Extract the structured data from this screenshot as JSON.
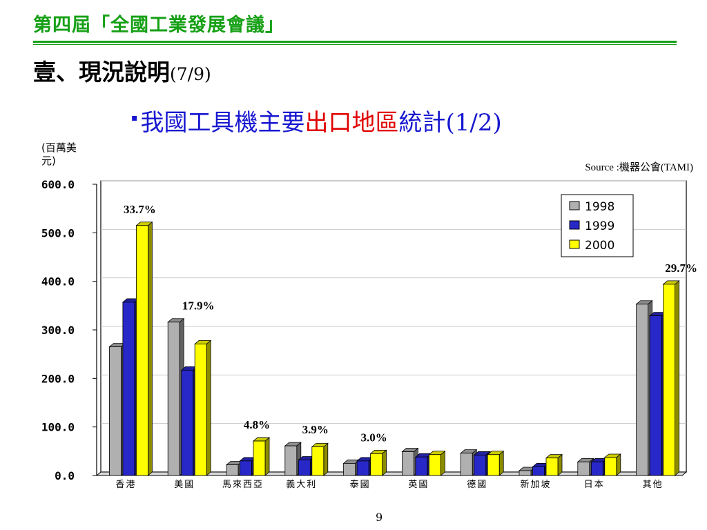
{
  "header": {
    "title": "第四屆「全國工業發展會議」"
  },
  "section": {
    "title": "壹、現況說明",
    "page_of": "(7/9)"
  },
  "chart_heading": {
    "bullet": "▪",
    "part1": "我國工具機主要",
    "part2": "出口地區",
    "part3": "統計(1/2)"
  },
  "colors": {
    "header_green": "#16a016",
    "heading_blue": "#1717d0",
    "highlight_red": "#e00000"
  },
  "page_number": "9",
  "chart_data": {
    "type": "bar",
    "title": "",
    "unit_label_lines": [
      "(百萬美",
      "元)"
    ],
    "source": "Source :機器公會(TAMI)",
    "xlabel": "",
    "ylabel": "",
    "ylim": [
      0,
      600
    ],
    "yticks": [
      0,
      100,
      200,
      300,
      400,
      500,
      600
    ],
    "ytick_labels": [
      "0.0",
      "100.0",
      "200.0",
      "300.0",
      "400.0",
      "500.0",
      "600.0"
    ],
    "grid": true,
    "legend_position": "top-right",
    "categories": [
      "香港",
      "美國",
      "馬來西亞",
      "義大利",
      "泰國",
      "英國",
      "德國",
      "新加坡",
      "日本",
      "其他"
    ],
    "series": [
      {
        "name": "1998",
        "color": "#b0b0b0",
        "values": [
          265,
          316,
          22,
          61,
          25,
          49,
          46,
          10,
          28,
          353
        ]
      },
      {
        "name": "1999",
        "color": "#2828c8",
        "values": [
          357,
          217,
          30,
          32,
          30,
          38,
          42,
          18,
          28,
          329
        ]
      },
      {
        "name": "2000",
        "color": "#ffff00",
        "values": [
          515,
          271,
          71,
          59,
          45,
          43,
          43,
          36,
          37,
          394
        ]
      }
    ],
    "annotations": [
      {
        "category_index": 0,
        "text": "33.7%"
      },
      {
        "category_index": 1,
        "text": "17.9%"
      },
      {
        "category_index": 2,
        "text": "4.8%"
      },
      {
        "category_index": 3,
        "text": "3.9%"
      },
      {
        "category_index": 4,
        "text": "3.0%"
      },
      {
        "category_index": 9,
        "text": "29.7%"
      }
    ]
  }
}
